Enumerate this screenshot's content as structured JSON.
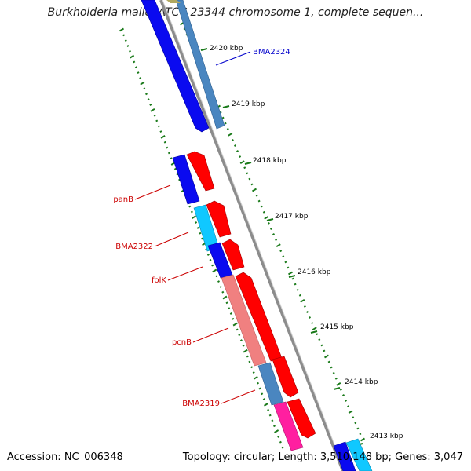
{
  "title": "Burkholderia mallei ATCC 23344 chromosome 1, complete sequen...",
  "footer": {
    "accession": "Accession: NC_006348",
    "summary": "Topology: circular; Length: 3,510,148 bp; Genes: 3,047"
  },
  "ticks": [
    {
      "label": "2420 kbp"
    },
    {
      "label": "2419 kbp"
    },
    {
      "label": "2418 kbp"
    },
    {
      "label": "2417 kbp"
    },
    {
      "label": "2416 kbp"
    },
    {
      "label": "2415 kbp"
    },
    {
      "label": "2414 kbp"
    },
    {
      "label": "2413 kbp"
    }
  ],
  "genes": [
    {
      "name": "BMA2324",
      "label_color": "#0000cc"
    },
    {
      "name": "panB",
      "label_color": "#cc0000"
    },
    {
      "name": "BMA2322",
      "label_color": "#cc0000"
    },
    {
      "name": "folK",
      "label_color": "#cc0000"
    },
    {
      "name": "pcnB",
      "label_color": "#cc0000"
    },
    {
      "name": "BMA2319",
      "label_color": "#cc0000"
    }
  ],
  "colors": {
    "backbone": "#8c8c8c",
    "tick": "#1a7a1a",
    "blue": "#0a0af0",
    "steel": "#4a86c0",
    "cyan": "#10c8ff",
    "red": "#ff0000",
    "salmon": "#f08080",
    "pink": "#ff1fa0",
    "olive": "#b0a860"
  }
}
